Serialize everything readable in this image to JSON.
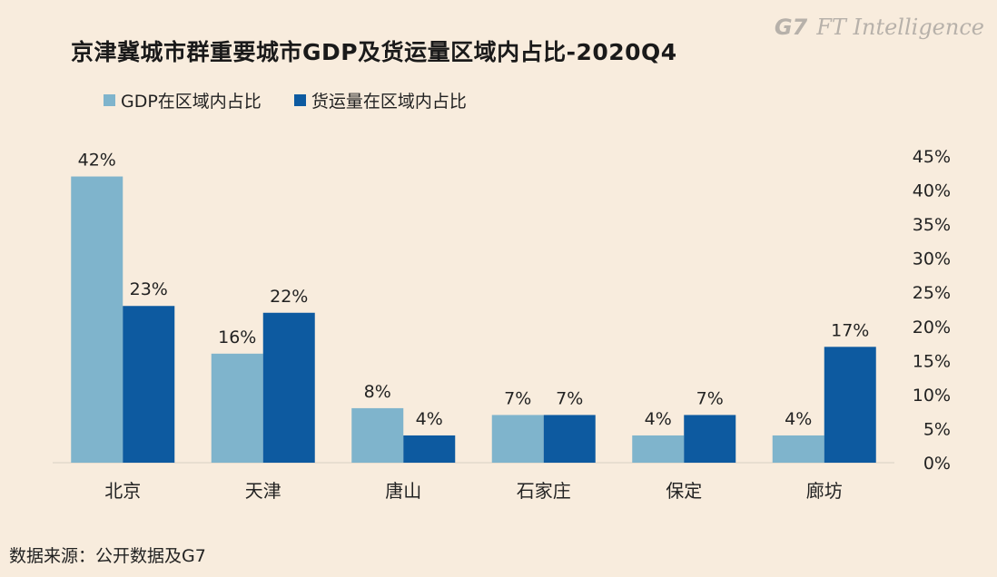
{
  "title": "京津冀城市群重要城市GDP及货运量区域内占比-2020Q4",
  "brand": {
    "g7": "G7",
    "name": "FT Intelligence"
  },
  "source": "数据来源：公开数据及G7",
  "colors": {
    "gdp": "#7fb4cc",
    "freight": "#0d5aa0",
    "background": "#f8ecdd"
  },
  "legend": [
    {
      "label": "GDP在区域内占比",
      "color": "#7fb4cc"
    },
    {
      "label": "货运量在区域内占比",
      "color": "#0d5aa0"
    }
  ],
  "chart_data": {
    "type": "bar",
    "categories": [
      "北京",
      "天津",
      "唐山",
      "石家庄",
      "保定",
      "廊坊"
    ],
    "series": [
      {
        "name": "GDP在区域内占比",
        "values": [
          42,
          16,
          8,
          7,
          4,
          4
        ],
        "labels": [
          "42%",
          "16%",
          "8%",
          "7%",
          "4%",
          "4%"
        ]
      },
      {
        "name": "货运量在区域内占比",
        "values": [
          23,
          22,
          4,
          7,
          7,
          17
        ],
        "labels": [
          "23%",
          "22%",
          "4%",
          "7%",
          "7%",
          "17%"
        ]
      }
    ],
    "ylim": [
      0,
      45
    ],
    "yticks": [
      0,
      5,
      10,
      15,
      20,
      25,
      30,
      35,
      40,
      45
    ],
    "ytick_labels": [
      "0%",
      "5%",
      "10%",
      "15%",
      "20%",
      "25%",
      "30%",
      "35%",
      "40%",
      "45%"
    ],
    "y_axis_side": "right",
    "grid": false,
    "legend_position": "top-left"
  }
}
